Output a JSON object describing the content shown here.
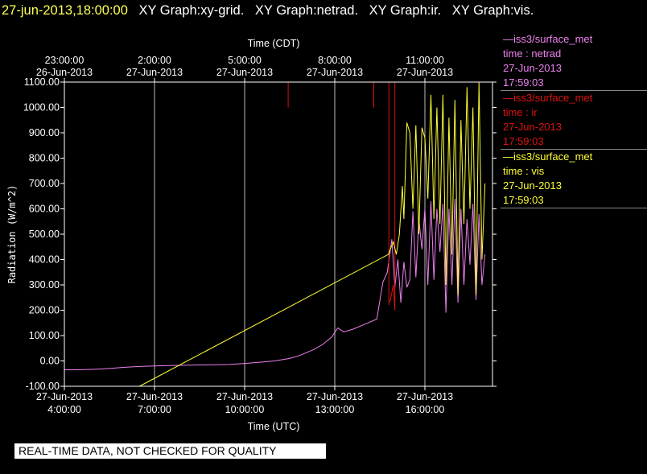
{
  "header": {
    "timestamp": "27-jun-2013,18:00:00",
    "graphs": [
      "XY Graph:xy-grid.",
      "XY Graph:netrad.",
      "XY Graph:ir.",
      "XY Graph:vis."
    ]
  },
  "colors": {
    "netrad": "#ee82ee",
    "ir": "#dd1111",
    "vis": "#ffff33",
    "grid": "#bbbbbb",
    "background": "#000000"
  },
  "legend": [
    {
      "dataset": "—iss3/surface_met",
      "field": "time : netrad",
      "date": "27-Jun-2013",
      "time": "17:59:03",
      "color": "#ee82ee"
    },
    {
      "dataset": "—iss3/surface_met",
      "field": "time : ir",
      "date": "27-Jun-2013",
      "time": "17:59:03",
      "color": "#dd1111"
    },
    {
      "dataset": "—iss3/surface_met",
      "field": "time : vis",
      "date": "27-Jun-2013",
      "time": "17:59:03",
      "color": "#ffff33"
    }
  ],
  "banner": "REAL-TIME DATA, NOT CHECKED FOR QUALITY",
  "chart_data": {
    "type": "line",
    "ylabel": "Radiation (W/m^2)",
    "xlabel_bottom": "Time (UTC)",
    "xlabel_top": "Time (CDT)",
    "ylim": [
      -100,
      1100
    ],
    "yticks": [
      "-100.00",
      "0.00",
      "100.00",
      "200.00",
      "300.00",
      "400.00",
      "500.00",
      "600.00",
      "700.00",
      "800.00",
      "900.00",
      "1000.00",
      "1100.00"
    ],
    "xlim_hours_utc": [
      4,
      18.25
    ],
    "bottom_ticks": [
      {
        "hour": 4,
        "date": "27-Jun-2013",
        "time": "4:00:00"
      },
      {
        "hour": 7,
        "date": "27-Jun-2013",
        "time": "7:00:00"
      },
      {
        "hour": 10,
        "date": "27-Jun-2013",
        "time": "10:00:00"
      },
      {
        "hour": 13,
        "date": "27-Jun-2013",
        "time": "13:00:00"
      },
      {
        "hour": 16,
        "date": "27-Jun-2013",
        "time": "16:00:00"
      }
    ],
    "top_ticks": [
      {
        "hour": 4,
        "date": "26-Jun-2013",
        "time": "23:00:00"
      },
      {
        "hour": 7,
        "date": "27-Jun-2013",
        "time": "2:00:00"
      },
      {
        "hour": 10,
        "date": "27-Jun-2013",
        "time": "5:00:00"
      },
      {
        "hour": 13,
        "date": "27-Jun-2013",
        "time": "8:00:00"
      },
      {
        "hour": 16,
        "date": "27-Jun-2013",
        "time": "11:00:00"
      }
    ],
    "grid": true,
    "series": [
      {
        "name": "netrad",
        "color": "#ee82ee",
        "x": [
          4.0,
          4.5,
          5.0,
          5.5,
          6.0,
          6.5,
          7.0,
          7.5,
          8.0,
          8.5,
          9.0,
          9.5,
          10.0,
          10.5,
          11.0,
          11.5,
          11.8,
          12.0,
          12.3,
          12.6,
          12.9,
          13.1,
          13.3,
          13.6,
          13.9,
          14.1,
          14.4,
          14.6,
          14.75,
          14.9,
          15.0,
          15.1,
          15.2,
          15.3,
          15.4,
          15.5,
          15.6,
          15.7,
          15.8,
          15.9,
          16.0,
          16.1,
          16.2,
          16.3,
          16.4,
          16.5,
          16.6,
          16.7,
          16.8,
          16.9,
          17.0,
          17.1,
          17.2,
          17.3,
          17.4,
          17.5,
          17.6,
          17.7,
          17.8,
          17.9,
          18.0
        ],
        "y": [
          -35,
          -35,
          -33,
          -30,
          -25,
          -22,
          -20,
          -18,
          -17,
          -16,
          -15,
          -14,
          -10,
          -5,
          0,
          10,
          20,
          30,
          45,
          65,
          95,
          130,
          115,
          125,
          140,
          150,
          165,
          310,
          350,
          480,
          290,
          400,
          230,
          390,
          290,
          320,
          590,
          330,
          560,
          440,
          600,
          300,
          630,
          320,
          600,
          430,
          620,
          190,
          600,
          300,
          640,
          230,
          600,
          300,
          560,
          380,
          620,
          240,
          580,
          300,
          420
        ]
      },
      {
        "name": "ir",
        "color": "#dd1111",
        "segments": [
          {
            "x": [
              11.45,
              11.45
            ],
            "y": [
              1000,
              1100
            ]
          },
          {
            "x": [
              14.3,
              14.3
            ],
            "y": [
              1000,
              1100
            ]
          },
          {
            "x": [
              14.8,
              14.8,
              14.8,
              14.85,
              14.95,
              15.0,
              15.0,
              15.0
            ],
            "y": [
              1100,
              220,
              230,
              240,
              300,
              200,
              230,
              1100
            ]
          }
        ]
      },
      {
        "name": "vis",
        "color": "#ffff33",
        "x": [
          6.5,
          14.78,
          14.95,
          15.05,
          15.15,
          15.25,
          15.3,
          15.4,
          15.5,
          15.6,
          15.7,
          15.8,
          15.9,
          16.0,
          16.1,
          16.2,
          16.3,
          16.4,
          16.5,
          16.6,
          16.7,
          16.8,
          16.9,
          17.0,
          17.1,
          17.2,
          17.3,
          17.4,
          17.5,
          17.6,
          17.7,
          17.8,
          17.9,
          18.0
        ],
        "y": [
          -100,
          420,
          470,
          420,
          500,
          690,
          560,
          940,
          900,
          600,
          930,
          500,
          920,
          880,
          640,
          1050,
          560,
          1000,
          540,
          1050,
          300,
          960,
          420,
          1030,
          260,
          950,
          540,
          1080,
          600,
          1000,
          260,
          1100,
          400,
          700
        ]
      }
    ]
  }
}
